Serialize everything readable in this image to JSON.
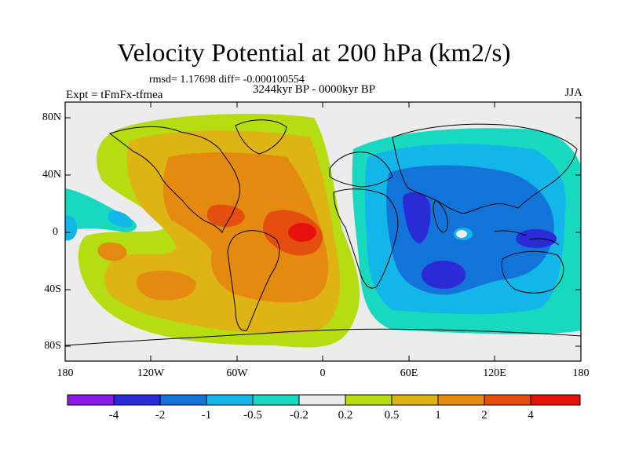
{
  "title": "Velocity Potential at 200 hPa (km2/s)",
  "stats": "rmsd= 1.17698 diff= -0.000100554",
  "experiment": "Expt = tFmFx-tfmea",
  "period": "3244kyr BP - 0000kyr BP",
  "season": "JJA",
  "lat_labels": [
    "80N",
    "40N",
    "0",
    "40S",
    "80S"
  ],
  "lon_labels": [
    "180",
    "120W",
    "60W",
    "0",
    "60E",
    "120E",
    "180"
  ],
  "colorbar": {
    "levels": [
      "-4",
      "-2",
      "-1",
      "-0.5",
      "-0.2",
      "0.2",
      "0.5",
      "1",
      "2",
      "4"
    ],
    "colors": [
      "#8a1ce8",
      "#2a2ad6",
      "#1273d9",
      "#12b6e8",
      "#19d8c0",
      "#ececec",
      "#b6dc12",
      "#ddb414",
      "#e48a10",
      "#e44f10",
      "#e8120c"
    ]
  },
  "colors": {
    "background": "#ececec",
    "neg_weak": "#19d8c0",
    "neg_mid": "#12b6e8",
    "neg_strong": "#1273d9",
    "neg_max": "#2a2ad6",
    "pos_weak": "#b6dc12",
    "pos_mid": "#ddb414",
    "pos_strong": "#e48a10",
    "pos_max": "#e44f10"
  }
}
